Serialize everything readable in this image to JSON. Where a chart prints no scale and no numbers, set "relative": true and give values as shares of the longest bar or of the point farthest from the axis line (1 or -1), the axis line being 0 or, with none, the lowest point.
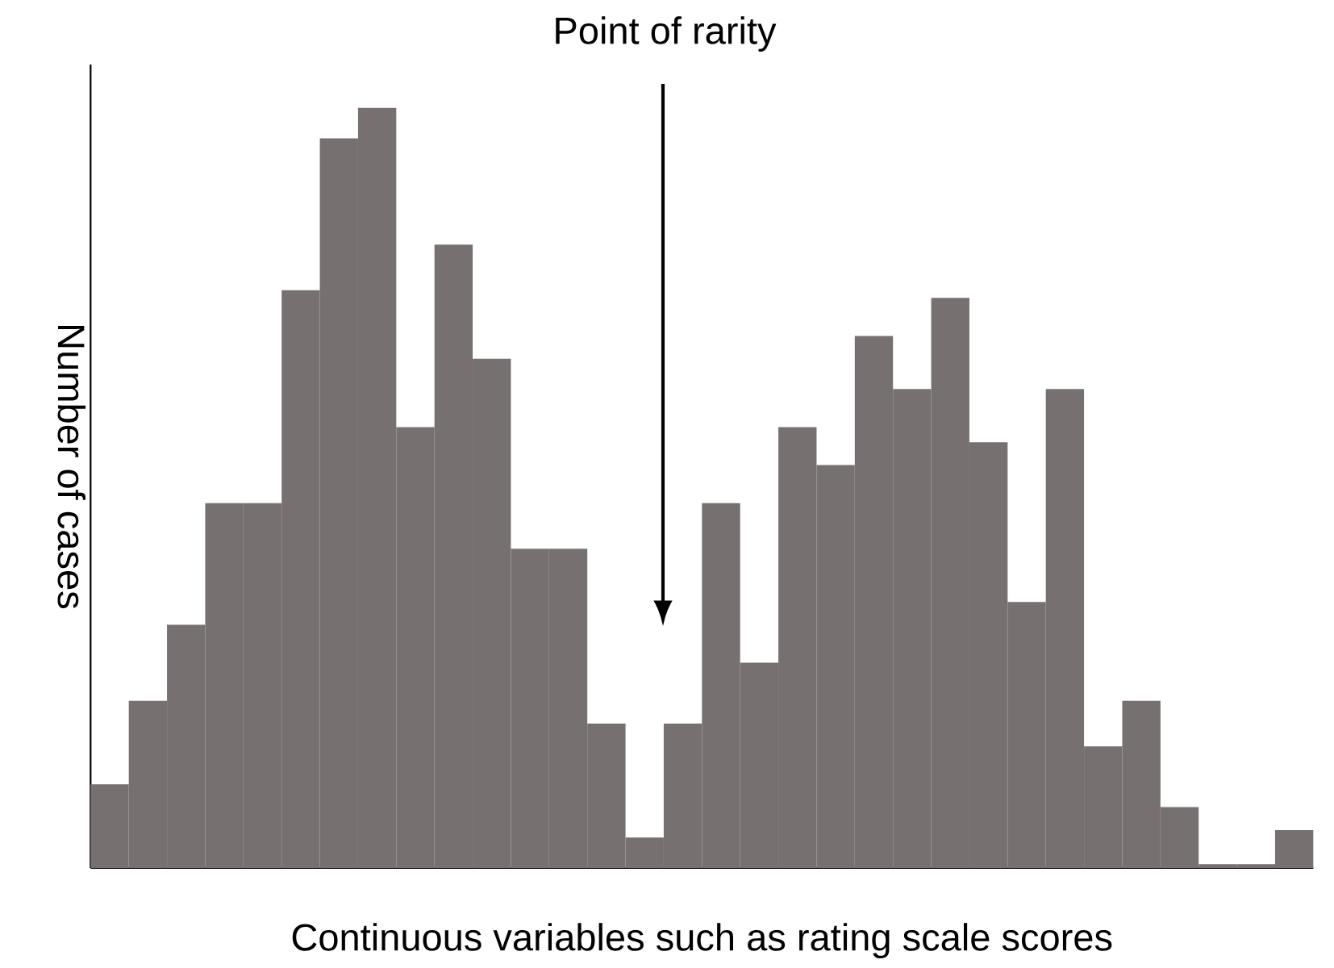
{
  "chart_data": {
    "type": "bar",
    "relative": true,
    "xlabel": "Continuous variables such as rating scale scores",
    "ylabel": "Number of cases",
    "annotations": [
      "Point of rarity"
    ],
    "color": "#767170",
    "categories": [
      null,
      null,
      null,
      null,
      null,
      null,
      null,
      null,
      null,
      null,
      null,
      null,
      null,
      null,
      null,
      null,
      null,
      null,
      null,
      null,
      null,
      null,
      null,
      null,
      null,
      null,
      null,
      null,
      null,
      null,
      null,
      null
    ],
    "values": [
      0.11,
      0.22,
      0.32,
      0.48,
      0.48,
      0.76,
      0.96,
      1,
      0.58,
      0.82,
      0.67,
      0.42,
      0.42,
      0.19,
      0.04,
      0.19,
      0.48,
      0.27,
      0.58,
      0.53,
      0.7,
      0.63,
      0.75,
      0.56,
      0.35,
      0.63,
      0.16,
      0.22,
      0.08,
      0.005,
      0.005,
      0.05
    ]
  }
}
